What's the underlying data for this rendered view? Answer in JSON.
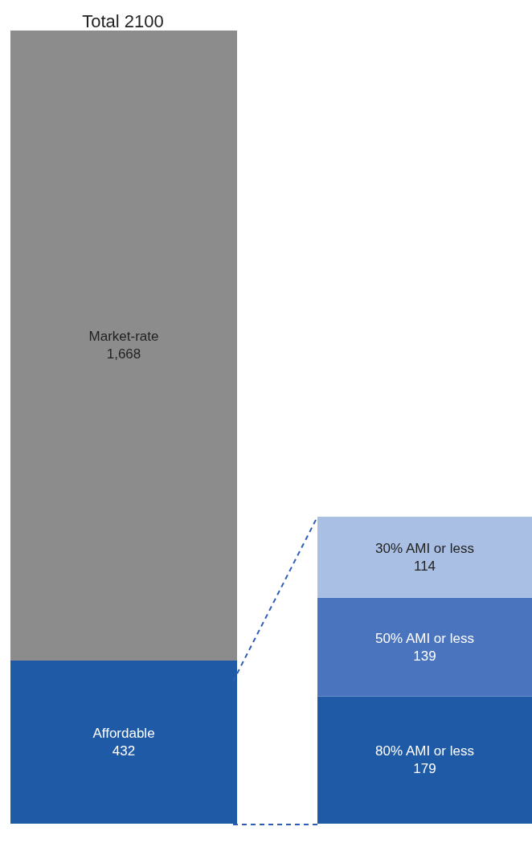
{
  "chart_data": [
    {
      "type": "bar",
      "title": "Total 2100",
      "categories": [
        null
      ],
      "stacked": true,
      "series": [
        {
          "name": "Affordable",
          "color": "#1f5aa6",
          "values": [
            432
          ],
          "value_labels": [
            "432"
          ]
        },
        {
          "name": "Market-rate",
          "color": "#8c8c8c",
          "values": [
            1668
          ],
          "value_labels": [
            "1,668"
          ]
        }
      ]
    },
    {
      "type": "bar",
      "categories": [
        null
      ],
      "stacked": true,
      "series": [
        {
          "name": "80% AMI or less",
          "color": "#1f5aa6",
          "values": [
            179
          ],
          "value_labels": [
            "179"
          ]
        },
        {
          "name": "50% AMI or less",
          "color": "#4a74be",
          "values": [
            139
          ],
          "value_labels": [
            "139"
          ]
        },
        {
          "name": "30% AMI or less",
          "color": "#a9c0e4",
          "values": [
            114
          ],
          "value_labels": [
            "114"
          ]
        }
      ]
    }
  ]
}
